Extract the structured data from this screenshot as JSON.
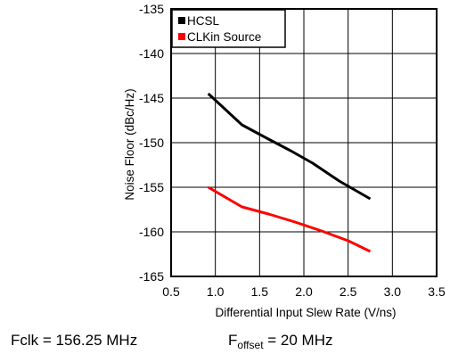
{
  "chart_data": {
    "type": "line",
    "title": "",
    "xlabel": "Differential Input Slew Rate (V/ns)",
    "ylabel": "Noise Floor (dBc/Hz)",
    "xlim": [
      0.5,
      3.5
    ],
    "ylim": [
      -165,
      -135
    ],
    "xticks": [
      0.5,
      1.0,
      1.5,
      2.0,
      2.5,
      3.0,
      3.5
    ],
    "xtick_labels": [
      "0.5",
      "1.0",
      "1.5",
      "2.0",
      "2.5",
      "3.0",
      "3.5"
    ],
    "yticks": [
      -135,
      -140,
      -145,
      -150,
      -155,
      -160,
      -165
    ],
    "ytick_labels": [
      "-135",
      "-140",
      "-145",
      "-150",
      "-155",
      "-160",
      "-165"
    ],
    "grid": true,
    "legend_position": "top-left",
    "series": [
      {
        "name": "HCSL",
        "color": "#000000",
        "x": [
          0.92,
          1.3,
          1.6,
          1.85,
          2.1,
          2.4,
          2.75
        ],
        "y": [
          -144.5,
          -148,
          -149.6,
          -150.9,
          -152.3,
          -154.3,
          -156.3
        ]
      },
      {
        "name": "CLKin Source",
        "color": "#ff0000",
        "x": [
          0.92,
          1.3,
          1.6,
          1.9,
          2.2,
          2.5,
          2.75
        ],
        "y": [
          -155,
          -157.2,
          -158,
          -158.9,
          -159.9,
          -161,
          -162.2
        ]
      }
    ]
  },
  "footer": {
    "fclk": "Fclk = 156.25 MHz",
    "foffset_main": "F",
    "foffset_sub": "offset",
    "foffset_value": " = 20 MHz"
  }
}
